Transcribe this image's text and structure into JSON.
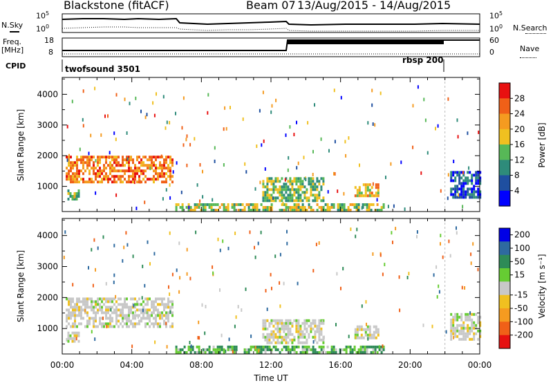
{
  "header": {
    "title": "Blackstone (fitACF)",
    "beam": "Beam 07",
    "date_range": "13/Aug/2015 - 14/Aug/2015"
  },
  "left_labels": {
    "nsky": "N.Sky",
    "freq_line1": "Freq.",
    "freq_line2": "[MHz]",
    "cpid": "CPID"
  },
  "right_labels": {
    "nsearch": "N.Search",
    "nave": "Nave"
  },
  "noise_panel": {
    "left_ticks": [
      "10^5",
      "10^0"
    ],
    "right_ticks": [
      "10^5",
      "10^0"
    ]
  },
  "freq_panel": {
    "left_ticks": [
      "18",
      "8"
    ],
    "right_ticks": [
      "60",
      "0"
    ]
  },
  "cpid_panel": {
    "segments": [
      {
        "label": "twofsound 3501",
        "start_hour": 0
      },
      {
        "label": "rbsp 200",
        "start_hour": 22
      }
    ]
  },
  "colors": {
    "power": [
      "#0000ff",
      "#1f4fa0",
      "#2e8b7a",
      "#57b857",
      "#f0c020",
      "#f59b20",
      "#f06018",
      "#e81010"
    ],
    "velocity": [
      "#0000e6",
      "#2e6aa0",
      "#2e8b57",
      "#66cc33",
      "#c8c8c8",
      "#f0c020",
      "#f59b20",
      "#f06018",
      "#e61010"
    ],
    "gray": "#c8c8c8"
  },
  "chart_data": [
    {
      "type": "heatmap",
      "title": "",
      "ylabel": "Slant Range [km]",
      "ylim": [
        180,
        4550
      ],
      "xlim": [
        0,
        24
      ],
      "y_ticks": [
        "1000",
        "2000",
        "3000",
        "4000"
      ],
      "colorbar": {
        "label": "Power [dB]",
        "tick_labels": [
          "4",
          "8",
          "12",
          "16",
          "20",
          "24",
          "28"
        ],
        "range": [
          0,
          32
        ]
      },
      "regions": [
        {
          "name": "morning-band",
          "x": [
            0.2,
            6.3
          ],
          "y": [
            1100,
            2000
          ],
          "value": 24
        },
        {
          "name": "morning-low-patch",
          "x": [
            0.3,
            1.0
          ],
          "y": [
            550,
            900
          ],
          "value": 14
        },
        {
          "name": "near-range-band",
          "x": [
            6.5,
            18.5
          ],
          "y": [
            200,
            450
          ],
          "value": 16
        },
        {
          "name": "midday-patch",
          "x": [
            11.5,
            15.0
          ],
          "y": [
            500,
            1300
          ],
          "value": 14
        },
        {
          "name": "afternoon-patch",
          "x": [
            16.8,
            18.2
          ],
          "y": [
            700,
            1100
          ],
          "value": 20
        },
        {
          "name": "late-evening-patch",
          "x": [
            22.3,
            24.0
          ],
          "y": [
            650,
            1500
          ],
          "value": 6
        }
      ]
    },
    {
      "type": "heatmap",
      "title": "",
      "xlabel": "Time UT",
      "ylabel": "Slant Range [km]",
      "ylim": [
        180,
        4550
      ],
      "xlim": [
        0,
        24
      ],
      "x_ticks": [
        "00:00",
        "04:00",
        "08:00",
        "12:00",
        "16:00",
        "20:00",
        "00:00"
      ],
      "y_ticks": [
        "1000",
        "2000",
        "3000",
        "4000"
      ],
      "colorbar": {
        "label": "Velocity [m s⁻¹]",
        "tick_labels": [
          "200",
          "100",
          "50",
          "15",
          "-15",
          "-50",
          "-100",
          "-200"
        ],
        "range": [
          -250,
          250
        ]
      },
      "regions": [
        {
          "name": "morning-band",
          "x": [
            0.2,
            6.3
          ],
          "y": [
            1100,
            2000
          ],
          "value": 0
        },
        {
          "name": "morning-low-patch",
          "x": [
            0.3,
            1.0
          ],
          "y": [
            550,
            900
          ],
          "value": 0
        },
        {
          "name": "near-range-band",
          "x": [
            6.5,
            18.5
          ],
          "y": [
            200,
            450
          ],
          "value": 30
        },
        {
          "name": "midday-patch",
          "x": [
            11.5,
            15.0
          ],
          "y": [
            500,
            1300
          ],
          "value": 0
        },
        {
          "name": "afternoon-patch",
          "x": [
            16.8,
            18.2
          ],
          "y": [
            700,
            1100
          ],
          "value": 0
        },
        {
          "name": "late-evening-patch",
          "x": [
            22.3,
            24.0
          ],
          "y": [
            650,
            1500
          ],
          "value": 0
        }
      ]
    }
  ]
}
